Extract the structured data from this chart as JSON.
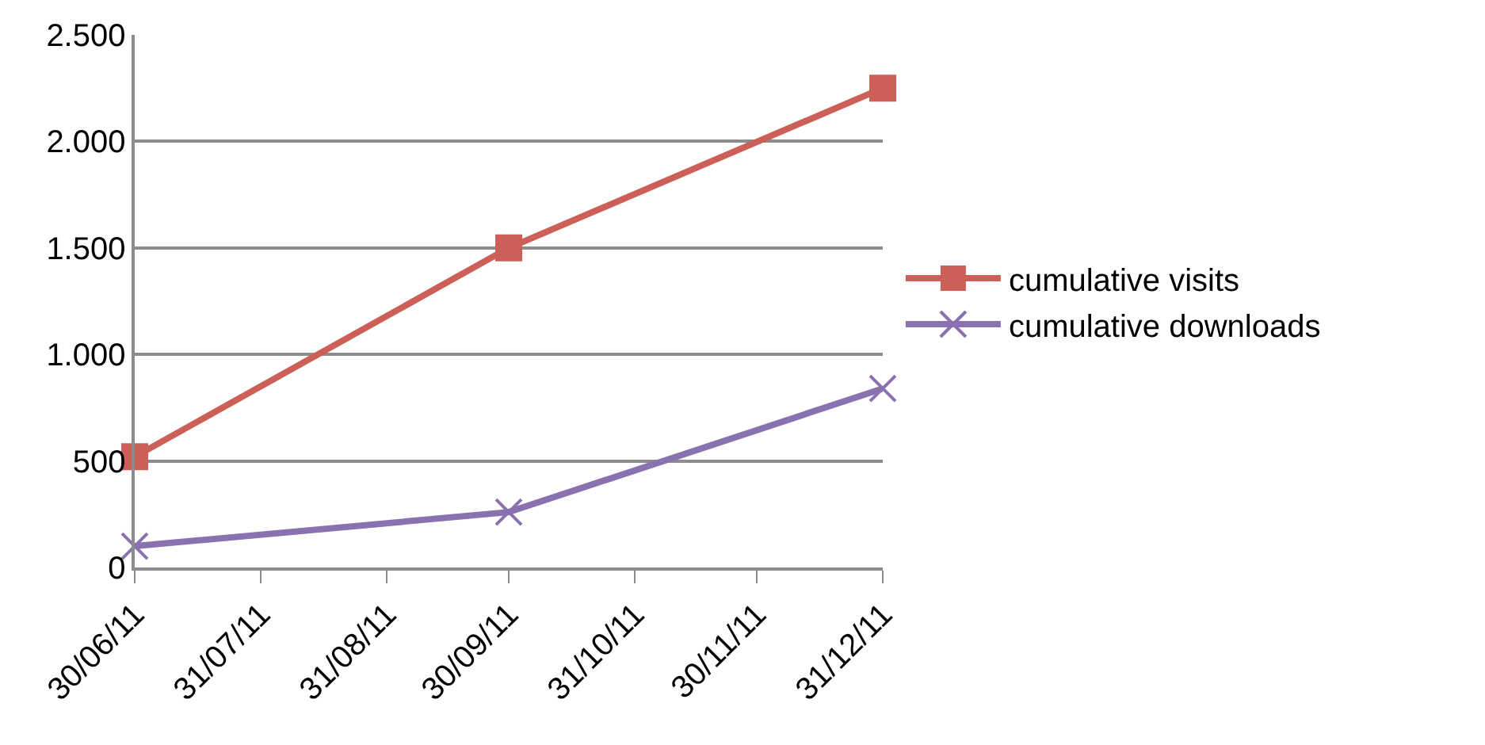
{
  "chart_data": {
    "type": "line",
    "x": [
      "2011-06-30",
      "2011-09-30",
      "2011-12-31"
    ],
    "series": [
      {
        "name": "cumulative visits",
        "color": "#cc5f57",
        "marker": "square",
        "values": [
          520,
          1500,
          2250
        ]
      },
      {
        "name": "cumulative downloads",
        "color": "#8a72b0",
        "marker": "cross",
        "values": [
          100,
          260,
          840
        ]
      }
    ],
    "xlim": [
      "2011-06-30",
      "2011-12-31"
    ],
    "xticks": [
      {
        "value": "2011-06-30",
        "label": "30/06/11"
      },
      {
        "value": "2011-07-31",
        "label": "31/07/11"
      },
      {
        "value": "2011-08-31",
        "label": "31/08/11"
      },
      {
        "value": "2011-09-30",
        "label": "30/09/11"
      },
      {
        "value": "2011-10-31",
        "label": "31/10/11"
      },
      {
        "value": "2011-11-30",
        "label": "30/11/11"
      },
      {
        "value": "2011-12-31",
        "label": "31/12/11"
      }
    ],
    "ylim": [
      0,
      2500
    ],
    "yticks": [
      {
        "value": 0,
        "label": "0"
      },
      {
        "value": 500,
        "label": "500"
      },
      {
        "value": 1000,
        "label": "1.000"
      },
      {
        "value": 1500,
        "label": "1.500"
      },
      {
        "value": 2000,
        "label": "2.000"
      },
      {
        "value": 2500,
        "label": "2.500"
      }
    ],
    "grid": "y",
    "legend": "right",
    "line_style": "solid"
  }
}
